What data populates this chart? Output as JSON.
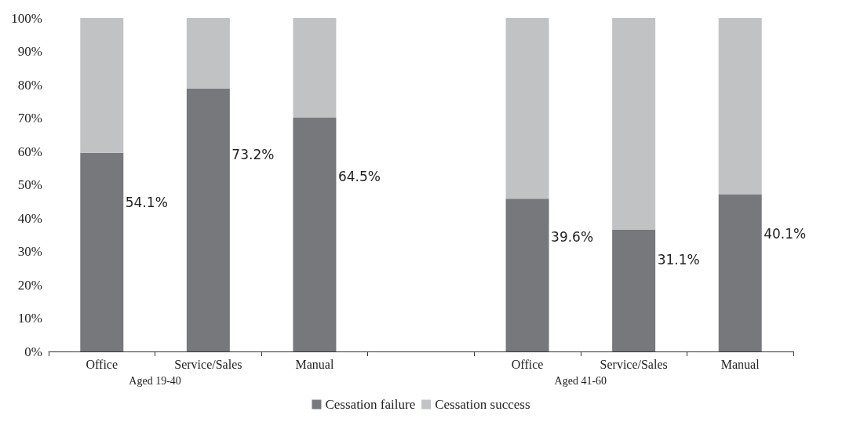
{
  "chart_data": {
    "type": "bar",
    "stacked": true,
    "categories": [
      "Office",
      "Service/Sales",
      "Manual",
      null,
      "Office",
      "Service/Sales",
      "Manual"
    ],
    "series": [
      {
        "name": "Cessation failure",
        "color": "#77787c",
        "values": [
          59.6,
          78.9,
          70.1,
          null,
          45.8,
          36.6,
          47.2
        ]
      },
      {
        "name": "Cessation success",
        "color": "#c1c2c4",
        "values": [
          40.4,
          21.1,
          29.9,
          null,
          54.2,
          63.4,
          52.8
        ]
      }
    ],
    "ylim": [
      0,
      100
    ],
    "yticks": [
      {
        "value": 0,
        "label": "0%"
      },
      {
        "value": 10,
        "label": "10%"
      },
      {
        "value": 20,
        "label": "20%"
      },
      {
        "value": 30,
        "label": "30%"
      },
      {
        "value": 40,
        "label": "40%"
      },
      {
        "value": 50,
        "label": "50%"
      },
      {
        "value": 60,
        "label": "60%"
      },
      {
        "value": 70,
        "label": "70%"
      },
      {
        "value": 80,
        "label": "80%"
      },
      {
        "value": 90,
        "label": "90%"
      },
      {
        "value": 100,
        "label": "100%"
      }
    ],
    "annotations": [
      "54.1%",
      "73.2%",
      "64.5%",
      "39.6%",
      "31.1%",
      "40.1%",
      "Aged 19-40",
      "Aged 41-60"
    ],
    "grid": false,
    "legend": "bottom"
  }
}
